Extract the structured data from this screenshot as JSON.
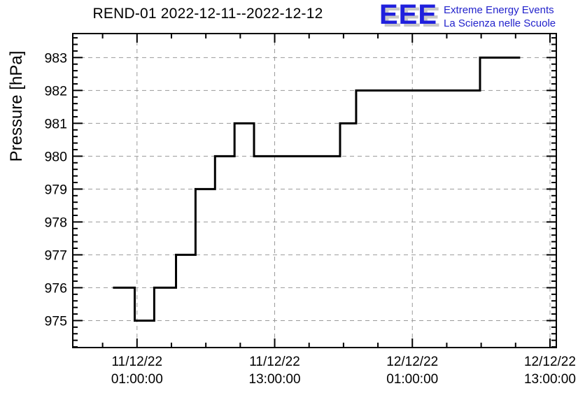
{
  "header": {
    "logo": {
      "letters": "EEE",
      "tagline_line1": "Extreme Energy Events",
      "tagline_line2": "La Scienza nelle Scuole",
      "letters_color": "#2020DD",
      "tagline_color": "#2323CC",
      "shadow_color": "#C8C8C8"
    }
  },
  "chart_data": {
    "type": "line",
    "line_style": "step",
    "title": "REND-01 2022-12-11--2022-12-12",
    "xlabel": "",
    "ylabel": "Pressure [hPa]",
    "line_color": "#000000",
    "grid_color": "#999999",
    "grid": "dashed, on major ticks only",
    "legend": "none",
    "x_unit": "hours since 2022-12-11 00:00:00",
    "xlim": [
      -4.6,
      37.55
    ],
    "ylim": [
      974.18,
      983.73
    ],
    "x_major_ticks": [
      {
        "hours": 1,
        "label_date": "11/12/22",
        "label_time": "01:00:00"
      },
      {
        "hours": 13,
        "label_date": "11/12/22",
        "label_time": "13:00:00"
      },
      {
        "hours": 25,
        "label_date": "12/12/22",
        "label_time": "01:00:00"
      },
      {
        "hours": 37,
        "label_date": "12/12/22",
        "label_time": "13:00:00"
      }
    ],
    "x_minor_step_hours": 3,
    "y_major_ticks": [
      975,
      976,
      977,
      978,
      979,
      980,
      981,
      982,
      983
    ],
    "y_minor_step": 0.2,
    "plateaus_hpa": [
      {
        "from_h": -1.1,
        "to_h": 0.8,
        "hpa": 976
      },
      {
        "from_h": 0.8,
        "to_h": 2.5,
        "hpa": 975
      },
      {
        "from_h": 2.5,
        "to_h": 4.4,
        "hpa": 976
      },
      {
        "from_h": 4.4,
        "to_h": 6.1,
        "hpa": 977
      },
      {
        "from_h": 6.1,
        "to_h": 7.8,
        "hpa": 979
      },
      {
        "from_h": 7.8,
        "to_h": 9.5,
        "hpa": 980
      },
      {
        "from_h": 9.5,
        "to_h": 11.2,
        "hpa": 981
      },
      {
        "from_h": 11.2,
        "to_h": 18.7,
        "hpa": 980
      },
      {
        "from_h": 18.7,
        "to_h": 20.1,
        "hpa": 981
      },
      {
        "from_h": 20.1,
        "to_h": 30.9,
        "hpa": 982
      },
      {
        "from_h": 30.9,
        "to_h": 34.4,
        "hpa": 983
      }
    ]
  }
}
